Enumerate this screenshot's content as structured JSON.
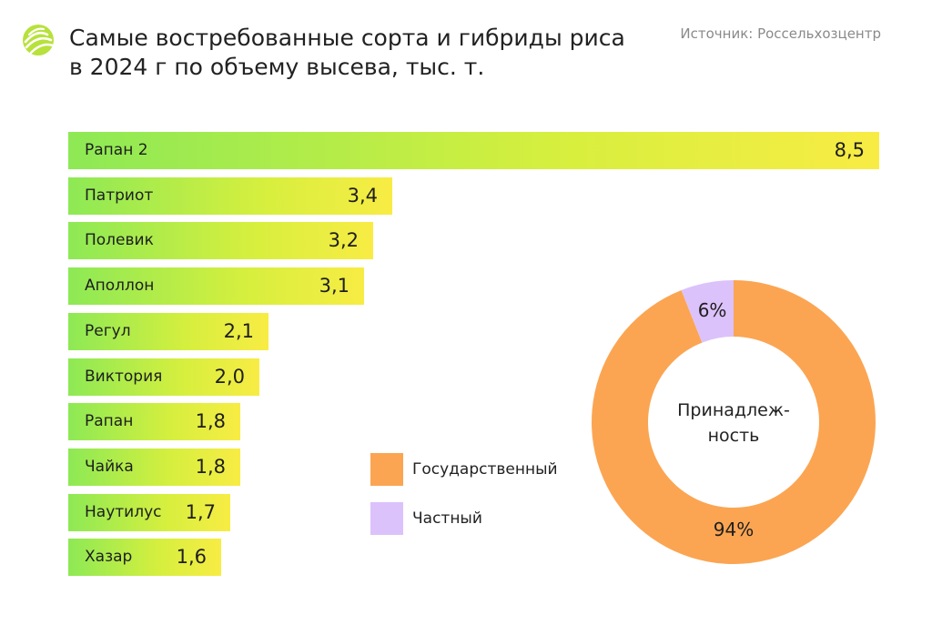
{
  "header": {
    "title_line1": "Самые востребованные сорта и гибриды риса",
    "title_line2": "в 2024 г по объему высева, тыс. т.",
    "source": "Источник: Россельхозцентр"
  },
  "colors": {
    "bar_start": "#8de955",
    "bar_end": "#f8ec44",
    "state": "#fba552",
    "private": "#dcc2fb"
  },
  "chart_data": [
    {
      "type": "bar",
      "orientation": "horizontal",
      "title": "Самые востребованные сорта и гибриды риса в 2024 г по объему высева, тыс. т.",
      "categories": [
        "Рапан 2",
        "Патриот",
        "Полевик",
        "Аполлон",
        "Регул",
        "Виктория",
        "Рапан",
        "Чайка",
        "Наутилус",
        "Хазар"
      ],
      "values": [
        8.5,
        3.4,
        3.2,
        3.1,
        2.1,
        2.0,
        1.8,
        1.8,
        1.7,
        1.6
      ],
      "value_labels": [
        "8,5",
        "3,4",
        "3,2",
        "3,1",
        "2,1",
        "2,0",
        "1,8",
        "1,8",
        "1,7",
        "1,6"
      ],
      "xlim": [
        0,
        8.5
      ]
    },
    {
      "type": "pie",
      "center_label_line1": "Принадлеж-",
      "center_label_line2": "ность",
      "legend_position": "left",
      "slices": [
        {
          "name": "Государственный",
          "value": 94,
          "label": "94%",
          "color": "#fba552"
        },
        {
          "name": "Частный",
          "value": 6,
          "label": "6%",
          "color": "#dcc2fb"
        }
      ]
    }
  ]
}
